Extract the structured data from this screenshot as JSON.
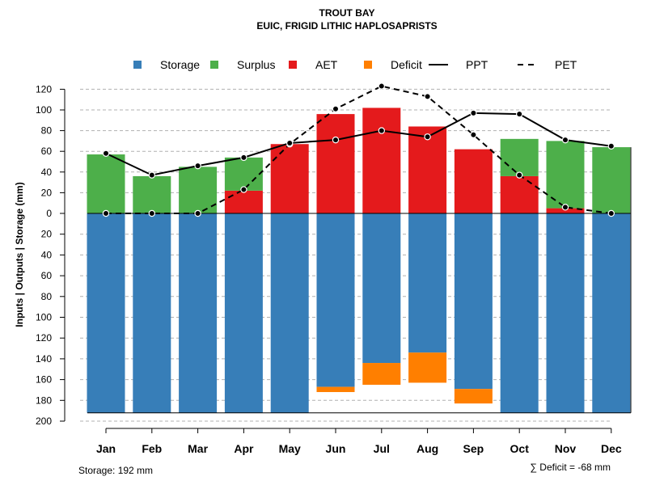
{
  "chart_data": {
    "type": "bar",
    "title": "TROUT BAY",
    "subtitle": "EUIC, FRIGID LITHIC HAPLOSAPRISTS",
    "ylabel": "Inputs | Outputs | Storage    (mm)",
    "categories": [
      "Jan",
      "Feb",
      "Mar",
      "Apr",
      "May",
      "Jun",
      "Jul",
      "Aug",
      "Sep",
      "Oct",
      "Nov",
      "Dec"
    ],
    "ylim_top": [
      0,
      120
    ],
    "ylim_bottom": [
      0,
      200
    ],
    "y_ticks_top": [
      "0",
      "20",
      "40",
      "60",
      "80",
      "100",
      "120"
    ],
    "y_ticks_bottom": [
      "20",
      "40",
      "60",
      "80",
      "100",
      "120",
      "140",
      "160",
      "180",
      "200"
    ],
    "legend": [
      {
        "label": "Storage",
        "kind": "box",
        "color": "#377EB8"
      },
      {
        "label": "Surplus",
        "kind": "box",
        "color": "#4DAF4A"
      },
      {
        "label": "AET",
        "kind": "box",
        "color": "#E41A1C"
      },
      {
        "label": "Deficit",
        "kind": "box",
        "color": "#FF7F00"
      },
      {
        "label": "PPT",
        "kind": "solid",
        "color": "#000000"
      },
      {
        "label": "PET",
        "kind": "dashed",
        "color": "#000000"
      }
    ],
    "series": [
      {
        "name": "AET",
        "color": "#E41A1C",
        "values": [
          0,
          0,
          0,
          22,
          67,
          96,
          102,
          84,
          62,
          36,
          5,
          0
        ]
      },
      {
        "name": "Surplus",
        "color": "#4DAF4A",
        "values": [
          57,
          36,
          45,
          32,
          0,
          0,
          0,
          0,
          0,
          36,
          65,
          64
        ]
      },
      {
        "name": "Storage",
        "color": "#377EB8",
        "values": [
          192,
          192,
          192,
          192,
          192,
          167,
          144,
          134,
          169,
          192,
          192,
          192
        ]
      },
      {
        "name": "Deficit",
        "color": "#FF7F00",
        "values": [
          0,
          0,
          0,
          0,
          0,
          5,
          21,
          29,
          14,
          0,
          0,
          0
        ]
      },
      {
        "name": "PPT",
        "color": "#000000",
        "values": [
          58,
          37,
          46,
          54,
          68,
          71,
          80,
          74,
          97,
          96,
          71,
          65
        ]
      },
      {
        "name": "PET",
        "color": "#000000",
        "values": [
          0,
          0,
          0,
          23,
          67,
          101,
          123,
          113,
          76,
          37,
          6,
          0
        ]
      }
    ]
  },
  "footer": {
    "storage_label": "Storage: 192 mm",
    "deficit_label": "∑ Deficit = -68 mm"
  }
}
